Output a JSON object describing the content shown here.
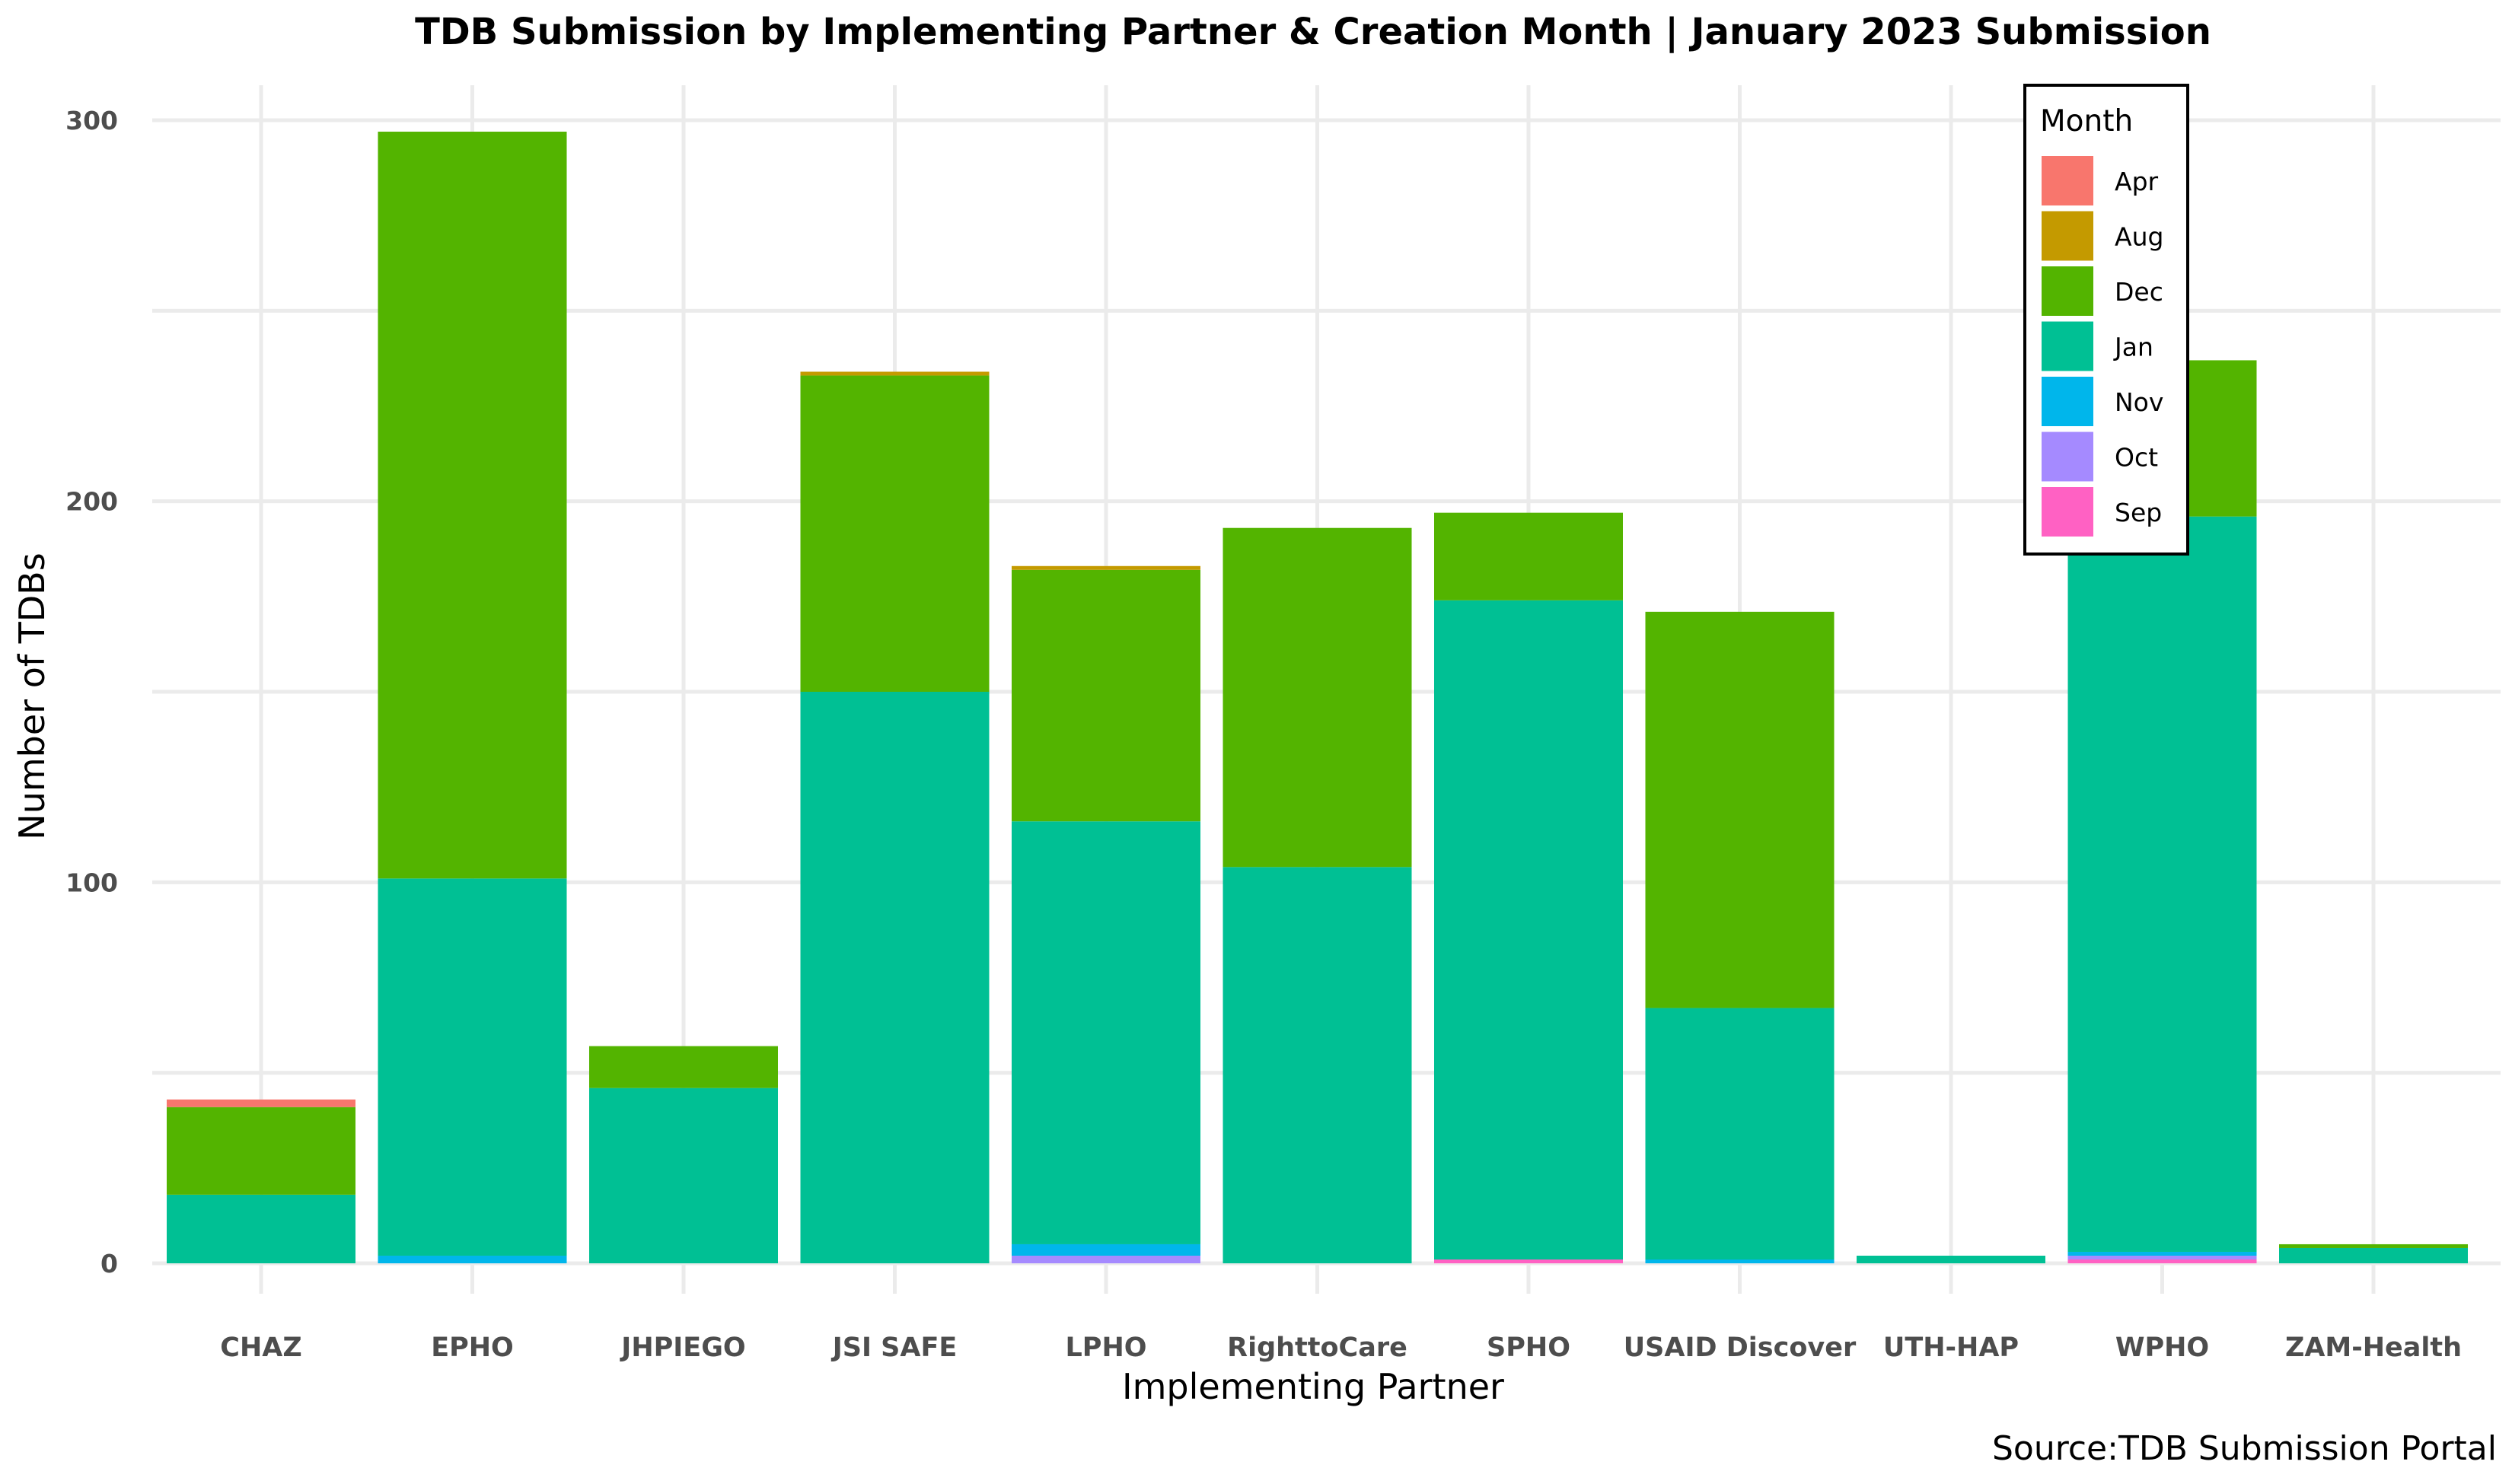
{
  "chart_data": {
    "type": "bar",
    "stacked": true,
    "title": "TDB Submission by Implementing Partner & Creation Month | January 2023 Submission",
    "xlabel": "Implementing Partner",
    "ylabel": "Number of TDBs",
    "caption": "Source:TDB Submission Portal",
    "ylim": [
      0,
      310
    ],
    "yticks": [
      0,
      100,
      200,
      300
    ],
    "grid": true,
    "legend": {
      "title": "Month",
      "position": "top-right-inside"
    },
    "categories": [
      "CHAZ",
      "EPHO",
      "JHPIEGO",
      "JSI SAFE",
      "LPHO",
      "RighttoCare",
      "SPHO",
      "USAID Discover",
      "UTH-HAP",
      "WPHO",
      "ZAM-Health"
    ],
    "series": [
      {
        "name": "Sep",
        "color": "#FF61C3",
        "values": [
          0,
          0,
          0,
          0,
          0,
          0,
          1,
          0,
          0,
          1,
          0
        ]
      },
      {
        "name": "Oct",
        "color": "#A58AFF",
        "values": [
          0,
          0,
          0,
          0,
          2,
          0,
          0,
          0,
          0,
          1,
          0
        ]
      },
      {
        "name": "Nov",
        "color": "#00B6EB",
        "values": [
          0,
          2,
          0,
          0,
          3,
          0,
          0,
          1,
          0,
          1,
          0
        ]
      },
      {
        "name": "Jan",
        "color": "#00C094",
        "values": [
          18,
          99,
          46,
          150,
          111,
          104,
          173,
          66,
          2,
          193,
          4
        ]
      },
      {
        "name": "Dec",
        "color": "#53B400",
        "values": [
          23,
          196,
          11,
          83,
          66,
          89,
          23,
          104,
          0,
          41,
          1
        ]
      },
      {
        "name": "Aug",
        "color": "#C49A00",
        "values": [
          0,
          0,
          0,
          1,
          1,
          0,
          0,
          0,
          0,
          0,
          0
        ]
      },
      {
        "name": "Apr",
        "color": "#F8766D",
        "values": [
          2,
          0,
          0,
          0,
          0,
          0,
          0,
          0,
          0,
          0,
          0
        ]
      }
    ],
    "legend_order": [
      "Apr",
      "Aug",
      "Dec",
      "Jan",
      "Nov",
      "Oct",
      "Sep"
    ]
  }
}
